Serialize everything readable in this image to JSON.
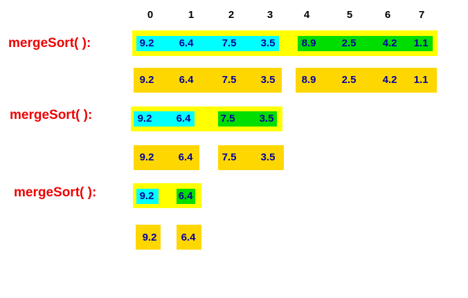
{
  "indices": [
    "0",
    "1",
    "2",
    "3",
    "4",
    "5",
    "6",
    "7"
  ],
  "calls": [
    "mergeSort( ):",
    "mergeSort( ):",
    "mergeSort( ):"
  ],
  "level1_call_values": [
    "9.2",
    "6.4",
    "7.5",
    "3.5",
    "8.9",
    "2.5",
    "4.2",
    "1.1"
  ],
  "level1_split_values": [
    "9.2",
    "6.4",
    "7.5",
    "3.5",
    "8.9",
    "2.5",
    "4.2",
    "1.1"
  ],
  "level2_call_values": [
    "9.2",
    "6.4",
    "7.5",
    "3.5"
  ],
  "level2_split_values": [
    "9.2",
    "6.4",
    "7.5",
    "3.5"
  ],
  "level3_call_values": [
    "9.2",
    "6.4"
  ],
  "level3_split_values": [
    "9.2",
    "6.4"
  ],
  "colors": {
    "call_text": "#ee0000",
    "value_text": "#00009c",
    "call_box": "#ffff00",
    "split_box": "#ffd700",
    "left_half": "#00ffff",
    "right_half": "#00dd00"
  }
}
